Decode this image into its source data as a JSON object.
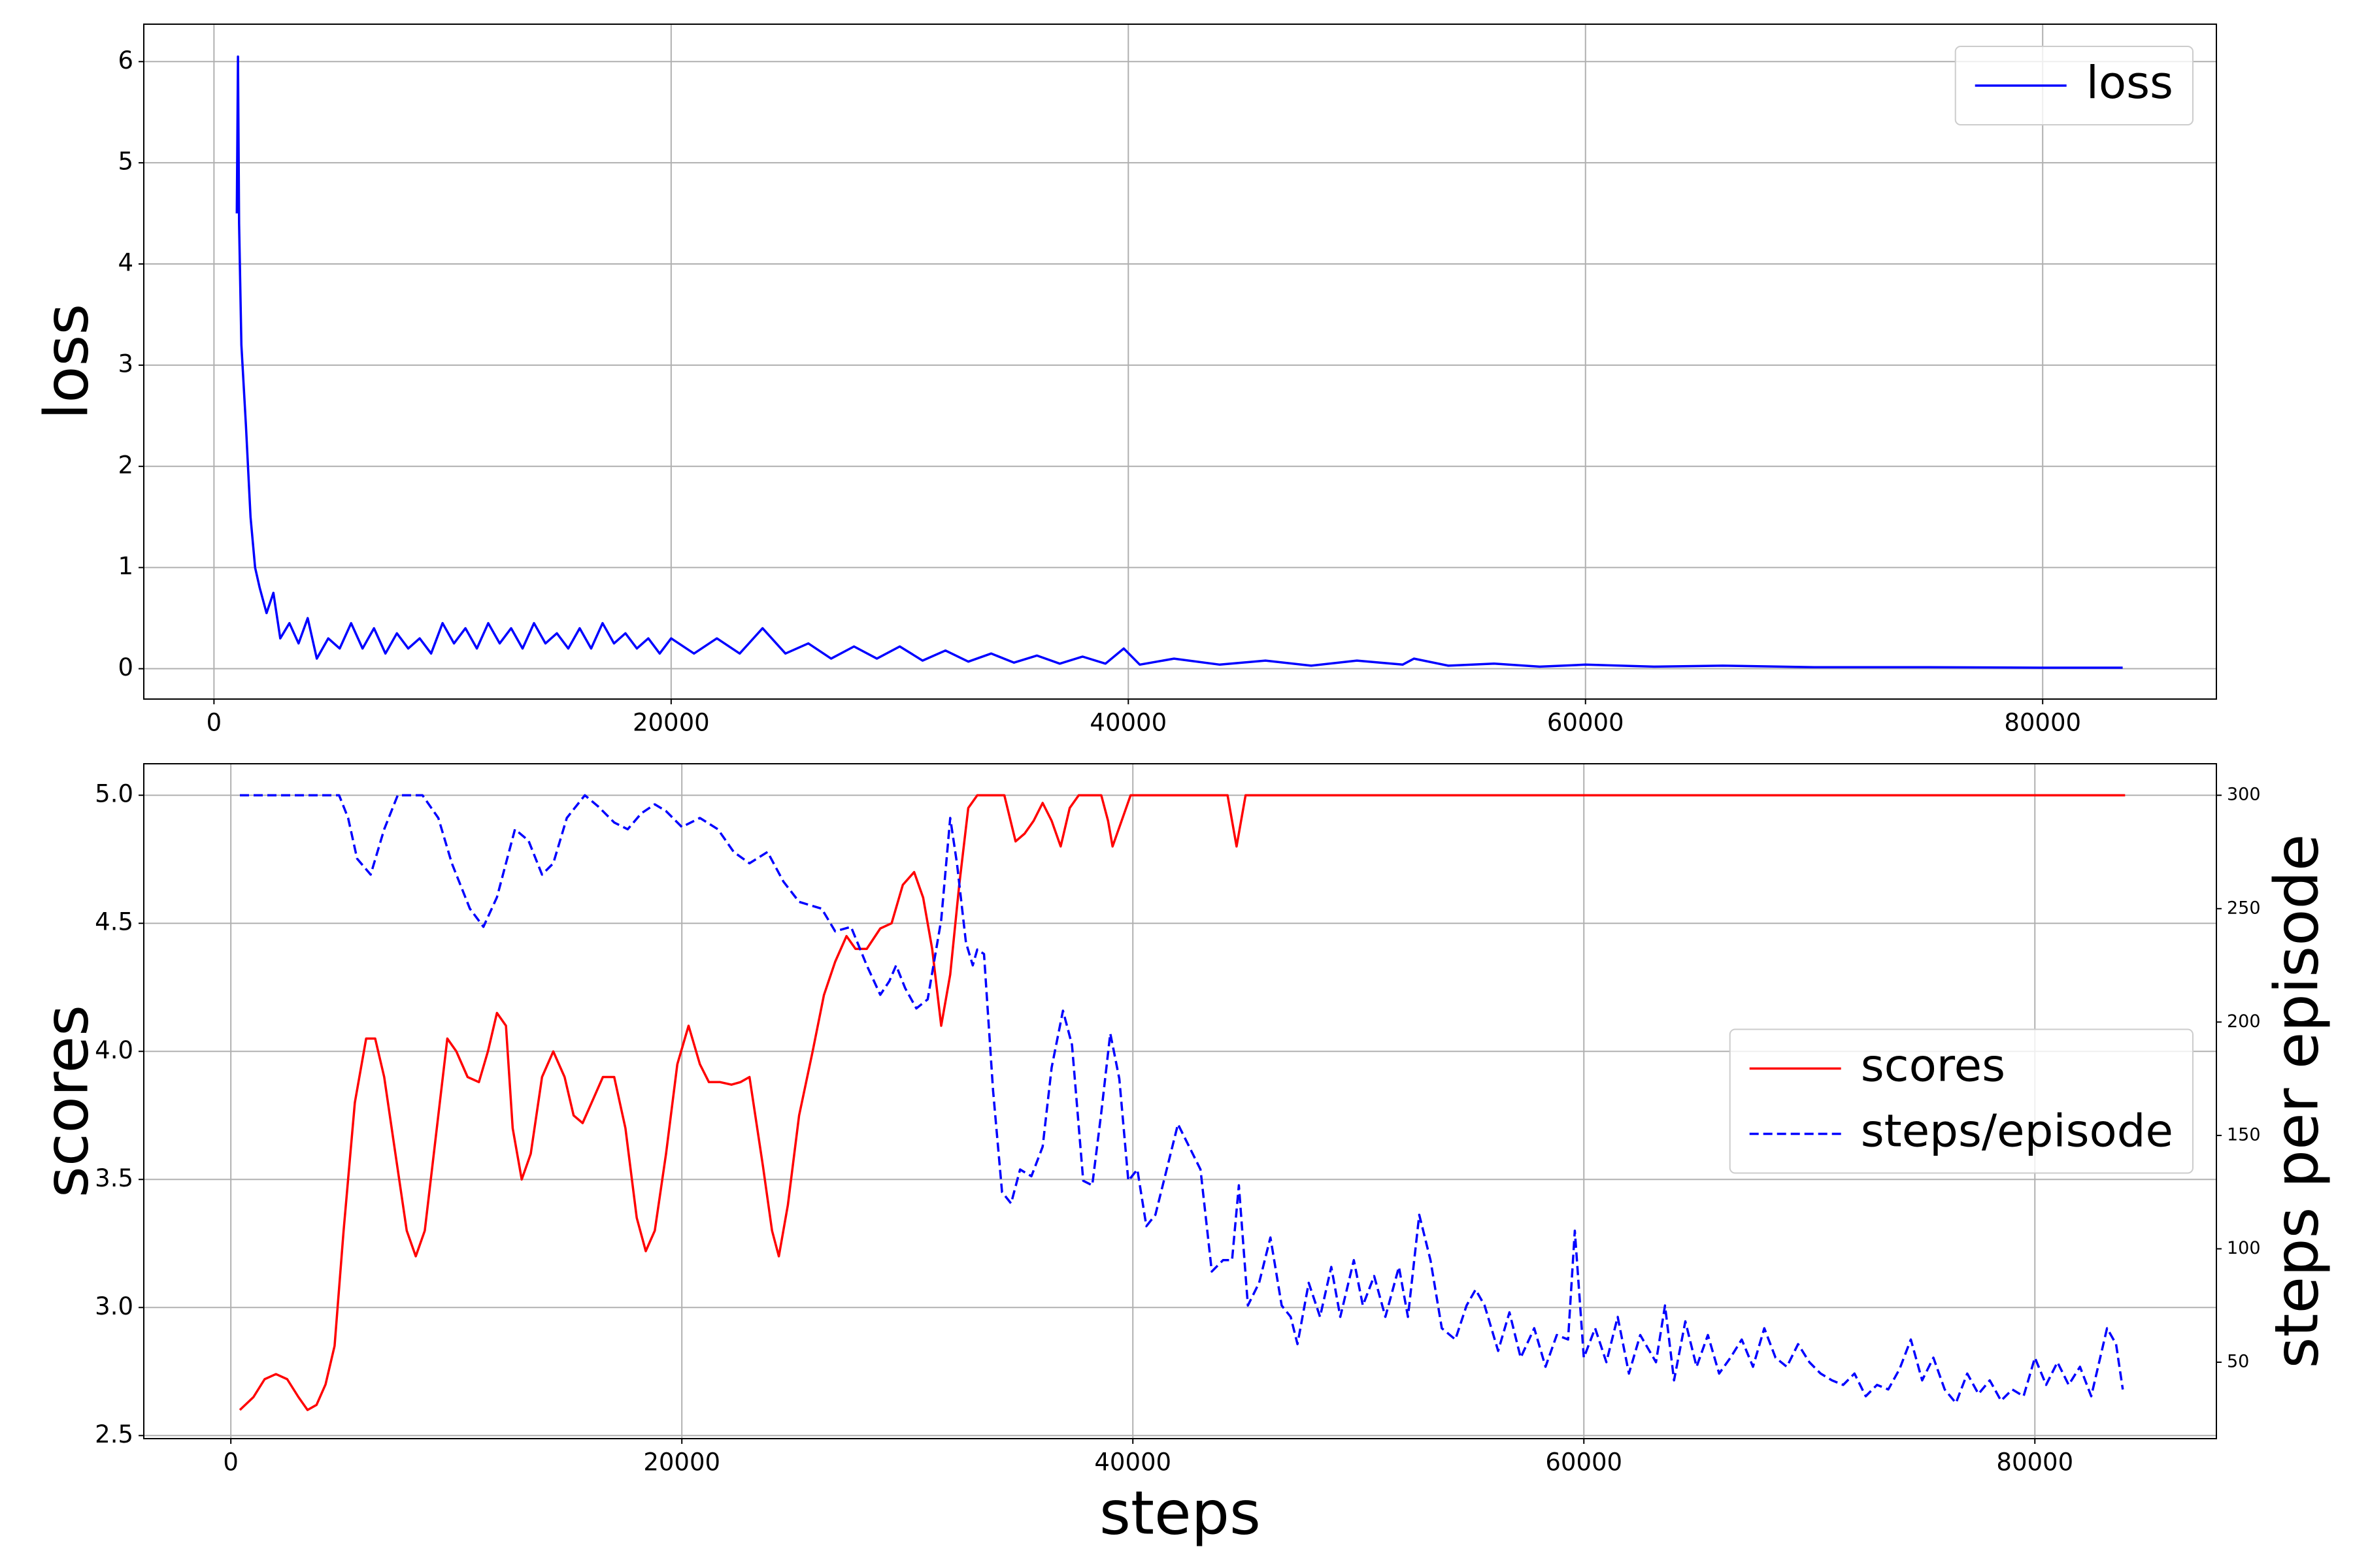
{
  "chart_data": [
    {
      "type": "line",
      "y_label": "loss",
      "legend": "upper right",
      "grid": true,
      "xlim": [
        -3070,
        87600
      ],
      "ylim": [
        -0.3,
        6.37
      ],
      "xticks": [
        0,
        20000,
        40000,
        60000,
        80000
      ],
      "yticks": [
        0,
        1,
        2,
        3,
        4,
        5,
        6
      ],
      "series": [
        {
          "name": "loss",
          "color": "#0000ff",
          "linestyle": "solid",
          "x": [
            1000,
            1050,
            1100,
            1200,
            1400,
            1600,
            1800,
            2000,
            2300,
            2600,
            2900,
            3300,
            3700,
            4100,
            4500,
            5000,
            5500,
            6000,
            6500,
            7000,
            7500,
            8000,
            8500,
            9000,
            9500,
            10000,
            10500,
            11000,
            11500,
            12000,
            12500,
            13000,
            13500,
            14000,
            14500,
            15000,
            15500,
            16000,
            16500,
            17000,
            17500,
            18000,
            18500,
            19000,
            19500,
            20000,
            21000,
            22000,
            23000,
            24000,
            25000,
            26000,
            27000,
            28000,
            29000,
            30000,
            31000,
            32000,
            33000,
            34000,
            35000,
            36000,
            37000,
            38000,
            39000,
            39800,
            40500,
            42000,
            44000,
            46000,
            48000,
            50000,
            52000,
            52500,
            54000,
            56000,
            58000,
            60000,
            63000,
            66000,
            70000,
            75000,
            80000,
            83500
          ],
          "values": [
            4.5,
            6.05,
            4.4,
            3.2,
            2.4,
            1.5,
            1.0,
            0.8,
            0.55,
            0.75,
            0.3,
            0.45,
            0.25,
            0.5,
            0.1,
            0.3,
            0.2,
            0.45,
            0.2,
            0.4,
            0.15,
            0.35,
            0.2,
            0.3,
            0.15,
            0.45,
            0.25,
            0.4,
            0.2,
            0.45,
            0.25,
            0.4,
            0.2,
            0.45,
            0.25,
            0.35,
            0.2,
            0.4,
            0.2,
            0.45,
            0.25,
            0.35,
            0.2,
            0.3,
            0.15,
            0.3,
            0.15,
            0.3,
            0.15,
            0.4,
            0.15,
            0.25,
            0.1,
            0.22,
            0.1,
            0.22,
            0.08,
            0.18,
            0.07,
            0.15,
            0.06,
            0.13,
            0.05,
            0.12,
            0.05,
            0.2,
            0.04,
            0.1,
            0.04,
            0.08,
            0.03,
            0.08,
            0.04,
            0.1,
            0.03,
            0.05,
            0.02,
            0.04,
            0.02,
            0.03,
            0.015,
            0.015,
            0.01,
            0.01
          ]
        }
      ]
    },
    {
      "type": "line",
      "x_label": "steps",
      "y_label": "scores",
      "y2_label": "steps per episode",
      "legend": "center right",
      "grid": true,
      "xlim": [
        -3860,
        88050
      ],
      "ylim": [
        2.488,
        5.123
      ],
      "y2lim": [
        16.3,
        313.9
      ],
      "xticks": [
        0,
        20000,
        40000,
        60000,
        80000
      ],
      "yticks": [
        2.5,
        {
          "value": 3,
          "label": "3.0"
        },
        3.5,
        {
          "value": 4,
          "label": "4.0"
        },
        4.5,
        {
          "value": 5,
          "label": "5.0"
        }
      ],
      "y2ticks": [
        50,
        100,
        150,
        200,
        250,
        300
      ],
      "series": [
        {
          "name": "scores",
          "color": "#ff0000",
          "linestyle": "solid",
          "axis": "y",
          "x": [
            400,
            1000,
            1500,
            2000,
            2500,
            3000,
            3400,
            3800,
            4200,
            4600,
            5000,
            5500,
            6000,
            6400,
            6800,
            7300,
            7800,
            8200,
            8600,
            9000,
            9600,
            10000,
            10500,
            11000,
            11400,
            11800,
            12200,
            12500,
            12900,
            13300,
            13800,
            14300,
            14800,
            15200,
            15600,
            16000,
            16500,
            17000,
            17500,
            18000,
            18400,
            18800,
            19300,
            19800,
            20300,
            20800,
            21200,
            21700,
            22200,
            22600,
            23000,
            23600,
            24000,
            24300,
            24700,
            25200,
            25800,
            26300,
            26800,
            27300,
            27700,
            28200,
            28800,
            29300,
            29800,
            30300,
            30700,
            31100,
            31500,
            31900,
            32300,
            32700,
            33100,
            34300,
            34800,
            35200,
            35600,
            36000,
            36400,
            36800,
            37200,
            37600,
            38600,
            38900,
            39100,
            39500,
            39900,
            44200,
            44600,
            45000,
            84000
          ],
          "values": [
            2.6,
            2.65,
            2.72,
            2.74,
            2.72,
            2.65,
            2.6,
            2.62,
            2.7,
            2.85,
            3.3,
            3.8,
            4.05,
            4.05,
            3.9,
            3.6,
            3.3,
            3.2,
            3.3,
            3.6,
            4.05,
            4.0,
            3.9,
            3.88,
            4.0,
            4.15,
            4.1,
            3.7,
            3.5,
            3.6,
            3.9,
            4.0,
            3.9,
            3.75,
            3.72,
            3.8,
            3.9,
            3.9,
            3.7,
            3.35,
            3.22,
            3.3,
            3.6,
            3.95,
            4.1,
            3.95,
            3.88,
            3.88,
            3.87,
            3.88,
            3.9,
            3.55,
            3.3,
            3.2,
            3.4,
            3.75,
            4.0,
            4.22,
            4.35,
            4.45,
            4.4,
            4.4,
            4.48,
            4.5,
            4.65,
            4.7,
            4.6,
            4.4,
            4.1,
            4.3,
            4.65,
            4.95,
            5.0,
            5.0,
            4.82,
            4.85,
            4.9,
            4.97,
            4.9,
            4.8,
            4.95,
            5.0,
            5.0,
            4.9,
            4.8,
            4.9,
            5.0,
            5.0,
            4.8,
            5.0,
            5.0
          ]
        },
        {
          "name": "steps/episode",
          "color": "#0000ff",
          "linestyle": "dashed",
          "axis": "y2",
          "x": [
            400,
            4800,
            5200,
            5600,
            6200,
            6800,
            7400,
            8500,
            9200,
            9800,
            10600,
            11200,
            11800,
            12600,
            13200,
            13800,
            14300,
            14900,
            15700,
            16300,
            17000,
            17600,
            18200,
            18800,
            19300,
            20000,
            20800,
            21600,
            22300,
            23000,
            23800,
            24500,
            25200,
            26200,
            26800,
            27500,
            28200,
            28800,
            29200,
            29500,
            29900,
            30400,
            30900,
            31500,
            31900,
            32200,
            32600,
            32900,
            33100,
            33400,
            33800,
            34200,
            34600,
            35000,
            35500,
            36000,
            36400,
            36900,
            37300,
            37800,
            38200,
            38600,
            39000,
            39400,
            39800,
            40200,
            40600,
            41000,
            41500,
            42000,
            42500,
            43000,
            43500,
            44000,
            44400,
            44700,
            45100,
            45600,
            46100,
            46600,
            47000,
            47300,
            47800,
            48300,
            48800,
            49200,
            49800,
            50200,
            50700,
            51200,
            51800,
            52200,
            52700,
            53200,
            53700,
            54300,
            54800,
            55200,
            55600,
            56200,
            56700,
            57200,
            57800,
            58300,
            58800,
            59300,
            59600,
            60000,
            60500,
            61000,
            61500,
            62000,
            62500,
            63200,
            63600,
            64000,
            64500,
            65000,
            65500,
            66000,
            66500,
            67000,
            67500,
            68000,
            68500,
            69000,
            69500,
            70000,
            70500,
            71000,
            71500,
            72000,
            72500,
            73000,
            73500,
            74000,
            74500,
            75000,
            75500,
            76000,
            76500,
            77000,
            77500,
            78000,
            78500,
            79000,
            79500,
            80000,
            80500,
            81000,
            81500,
            82000,
            82500,
            83200,
            83600,
            83900
          ],
          "values": [
            300,
            300,
            290,
            272,
            265,
            285,
            300,
            300,
            290,
            270,
            250,
            242,
            255,
            285,
            280,
            265,
            270,
            290,
            300,
            295,
            288,
            285,
            292,
            296,
            293,
            286,
            290,
            285,
            275,
            270,
            275,
            262,
            253,
            250,
            240,
            242,
            225,
            212,
            218,
            225,
            215,
            206,
            210,
            245,
            290,
            270,
            235,
            225,
            232,
            230,
            170,
            125,
            120,
            135,
            132,
            145,
            180,
            205,
            190,
            130,
            128,
            160,
            195,
            175,
            130,
            135,
            110,
            115,
            135,
            155,
            145,
            135,
            90,
            95,
            95,
            128,
            75,
            85,
            105,
            75,
            70,
            58,
            85,
            70,
            92,
            70,
            95,
            75,
            88,
            70,
            92,
            70,
            115,
            95,
            65,
            60,
            75,
            82,
            75,
            55,
            72,
            52,
            65,
            48,
            62,
            60,
            108,
            52,
            65,
            50,
            70,
            45,
            62,
            50,
            75,
            42,
            68,
            48,
            62,
            45,
            52,
            60,
            48,
            65,
            52,
            48,
            58,
            50,
            45,
            42,
            40,
            45,
            35,
            40,
            38,
            47,
            60,
            42,
            52,
            38,
            32,
            45,
            36,
            42,
            33,
            38,
            35,
            52,
            40,
            50,
            40,
            48,
            35,
            65,
            58,
            38
          ]
        }
      ]
    }
  ]
}
